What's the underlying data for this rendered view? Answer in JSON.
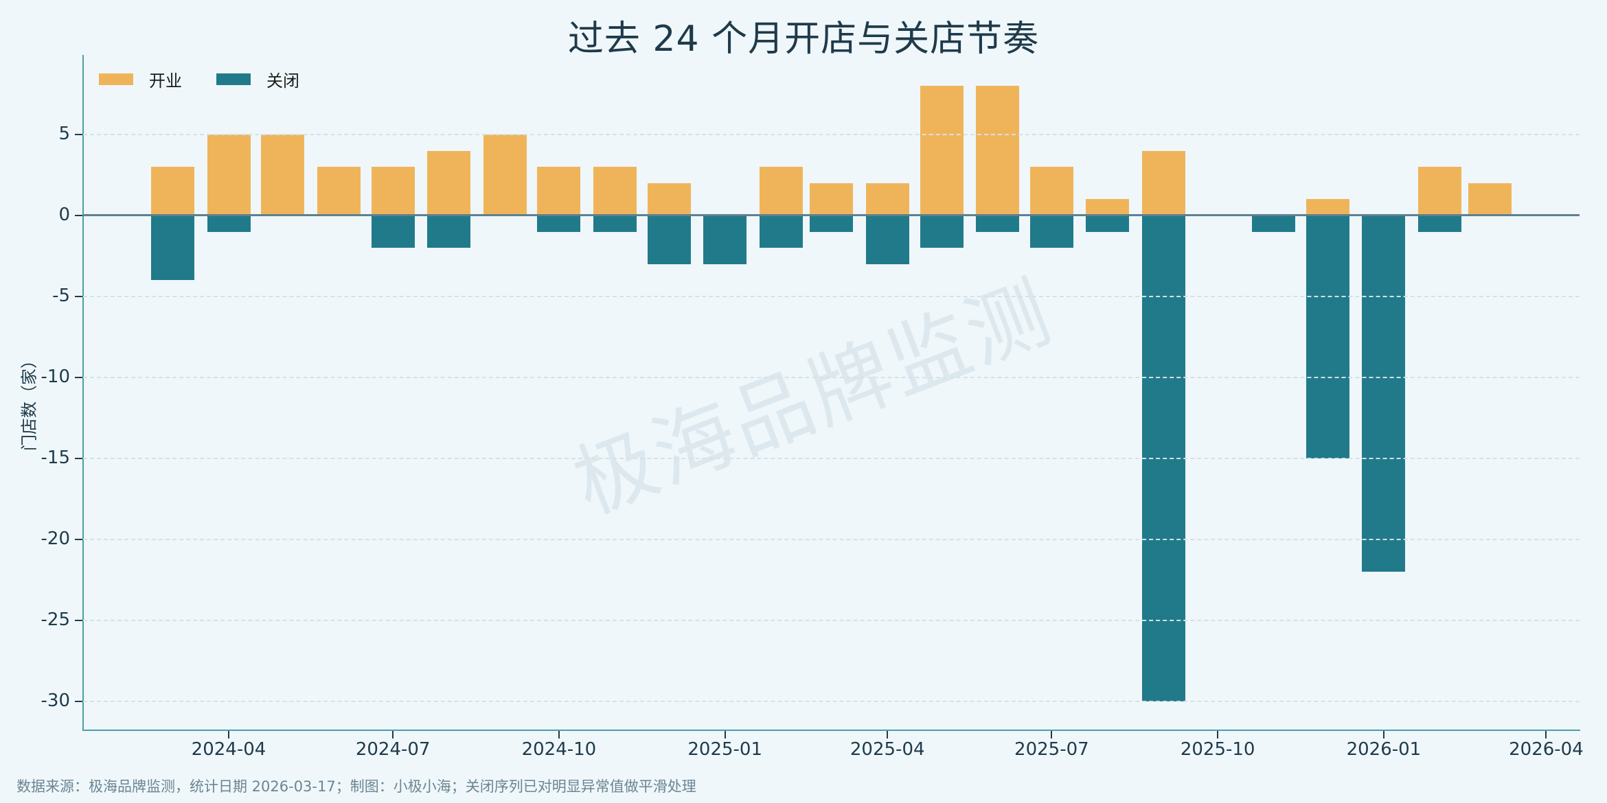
{
  "title": "过去 24 个月开店与关店节奏",
  "watermark": "极海品牌监测",
  "footer": "数据来源：极海品牌监测，统计日期 2026-03-17；制图：小极小海；关闭序列已对明显异常值做平滑处理",
  "colors": {
    "open": "#efb45a",
    "close": "#217a8a",
    "background": "#eff7fa",
    "axis": "#4a9fa6"
  },
  "legend": [
    {
      "label": "开业",
      "color": "#efb45a"
    },
    {
      "label": "关闭",
      "color": "#217a8a"
    }
  ],
  "chart_data": {
    "type": "bar",
    "title": "过去 24 个月开店与关店节奏",
    "xlabel": "",
    "ylabel": "门店数（家）",
    "ylim": [
      -31.8,
      9.9
    ],
    "yticks": [
      5,
      0,
      -5,
      -10,
      -15,
      -20,
      -25,
      -30
    ],
    "xticks": [
      "2024-04",
      "2024-07",
      "2024-10",
      "2025-01",
      "2025-04",
      "2025-07",
      "2025-10",
      "2026-01",
      "2026-04"
    ],
    "grid": "horizontal dashed",
    "legend_position": "upper left",
    "categories": [
      "2024-03",
      "2024-04",
      "2024-05",
      "2024-06",
      "2024-07",
      "2024-08",
      "2024-09",
      "2024-10",
      "2024-11",
      "2024-12",
      "2025-01",
      "2025-02",
      "2025-03",
      "2025-04",
      "2025-05",
      "2025-06",
      "2025-07",
      "2025-08",
      "2025-09",
      "2025-10",
      "2025-11",
      "2025-12",
      "2026-01",
      "2026-02",
      "2026-03"
    ],
    "series": [
      {
        "name": "开业",
        "values": [
          3,
          5,
          5,
          3,
          3,
          4,
          5,
          3,
          3,
          2,
          0,
          3,
          2,
          2,
          8,
          8,
          3,
          1,
          4,
          0,
          0,
          1,
          0,
          3,
          2
        ]
      },
      {
        "name": "关闭",
        "values": [
          -4,
          -1,
          0,
          0,
          -2,
          -2,
          0,
          -1,
          -1,
          -3,
          -3,
          -2,
          -1,
          -3,
          -2,
          -1,
          -2,
          -1,
          -30,
          0,
          -1,
          -15,
          -22,
          -1,
          0
        ]
      }
    ]
  }
}
